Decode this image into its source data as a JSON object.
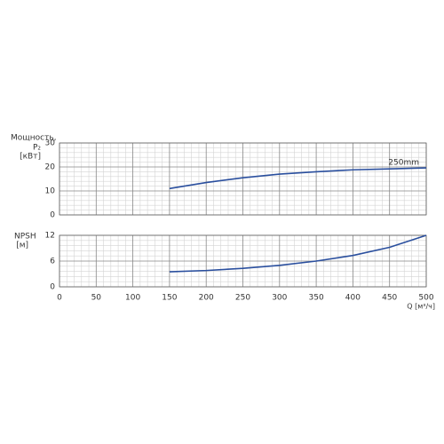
{
  "chart_data": [
    {
      "type": "line",
      "ylabel": [
        "Мощность,",
        "P₂",
        "[кВт]"
      ],
      "x": [
        150,
        200,
        250,
        300,
        350,
        400,
        450,
        500
      ],
      "series": [
        {
          "name": "250mm",
          "color": "#2a4f9e",
          "values": [
            11,
            13.5,
            15.5,
            17,
            18,
            18.8,
            19.2,
            19.6
          ]
        }
      ],
      "xlim": [
        0,
        500
      ],
      "ylim": [
        0,
        30
      ],
      "yticks": [
        0,
        10,
        20,
        30
      ],
      "grid": true
    },
    {
      "type": "line",
      "ylabel": [
        "NPSH",
        "[м]"
      ],
      "xlabel": "Q [м³/ч]",
      "x": [
        150,
        200,
        250,
        300,
        350,
        400,
        450,
        500
      ],
      "series": [
        {
          "color": "#2a4f9e",
          "values": [
            3.5,
            3.8,
            4.3,
            5,
            6,
            7.3,
            9.2,
            12
          ]
        }
      ],
      "xlim": [
        0,
        500
      ],
      "xticks": [
        0,
        50,
        100,
        150,
        200,
        250,
        300,
        350,
        400,
        450,
        500
      ],
      "ylim": [
        0,
        12
      ],
      "yticks": [
        0,
        6,
        12
      ],
      "grid": true
    }
  ]
}
